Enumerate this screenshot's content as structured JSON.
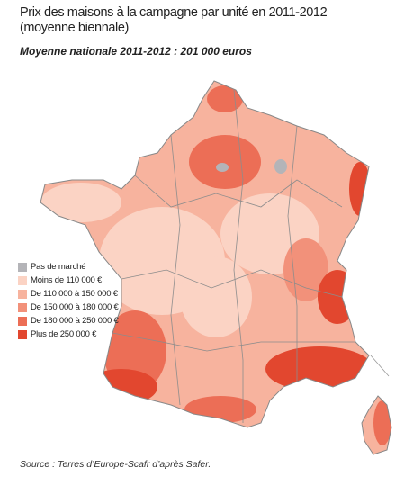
{
  "header": {
    "title": "Prix des maisons à la campagne par unité en 2011-2012 (moyenne biennale)",
    "subtitle": "Moyenne nationale 2011-2012 : 201 000 euros"
  },
  "legend": {
    "items": [
      {
        "label": "Pas de marché",
        "color": "#b4b4b8"
      },
      {
        "label": "Moins de 110 000 €",
        "color": "#fbd3c4"
      },
      {
        "label": "De 110 000 à 150 000 €",
        "color": "#f7b39e"
      },
      {
        "label": "De 150 000 à 180 000 €",
        "color": "#f2917a"
      },
      {
        "label": "De 180 000 à 250 000 €",
        "color": "#ec6e56"
      },
      {
        "label": "Plus de 250 000 €",
        "color": "#e2472f"
      }
    ]
  },
  "source": "Source : Terres d’Europe-Scafr d’après Safer."
}
